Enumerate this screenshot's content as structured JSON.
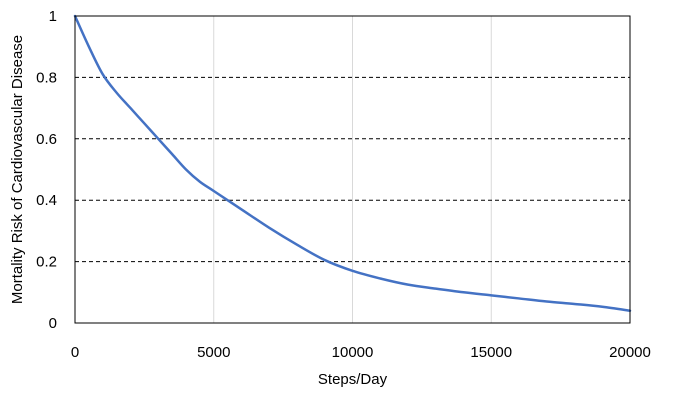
{
  "chart_data": {
    "type": "line",
    "title": "",
    "xlabel": "Steps/Day",
    "ylabel": "Mortality Risk of Cardiovascular Disease",
    "xlim": [
      0,
      20000
    ],
    "ylim": [
      0,
      1
    ],
    "x_ticks": [
      0,
      5000,
      10000,
      15000,
      20000
    ],
    "x_tick_labels": [
      "0",
      "5000",
      "10000",
      "15000",
      "20000"
    ],
    "y_ticks": [
      0,
      0.2,
      0.4,
      0.6,
      0.8,
      1
    ],
    "y_tick_labels": [
      "0",
      "0.2",
      "0.4",
      "0.6",
      "0.8",
      "1"
    ],
    "grid": {
      "horizontal": "dashed",
      "vertical": "solid-light"
    },
    "legend": "none",
    "colors": {
      "series": "#4472C4",
      "frame": "#000000",
      "h_grid": "#000000",
      "v_grid": "#D9D9D9"
    },
    "series": [
      {
        "x": [
          0,
          500,
          1000,
          1500,
          2000,
          2500,
          3000,
          3500,
          4000,
          4500,
          5000,
          6000,
          7000,
          8000,
          9000,
          10000,
          11000,
          12000,
          13000,
          14000,
          15000,
          16000,
          17000,
          18000,
          19000,
          20000
        ],
        "values": [
          1.0,
          0.9,
          0.81,
          0.75,
          0.7,
          0.65,
          0.6,
          0.55,
          0.5,
          0.46,
          0.43,
          0.37,
          0.31,
          0.255,
          0.205,
          0.17,
          0.145,
          0.125,
          0.112,
          0.1,
          0.09,
          0.08,
          0.07,
          0.062,
          0.053,
          0.04
        ]
      }
    ]
  }
}
